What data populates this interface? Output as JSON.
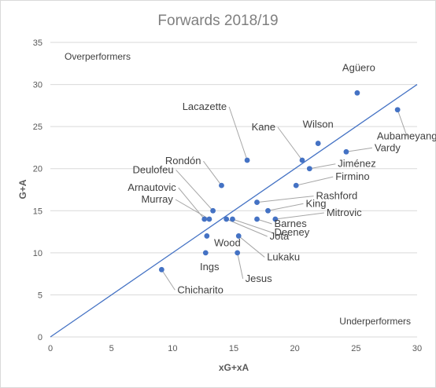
{
  "chart_data": {
    "type": "scatter",
    "title": "Forwards 2018/19",
    "xlabel": "xG+xA",
    "ylabel": "G+A",
    "xlim": [
      0,
      30
    ],
    "ylim": [
      0,
      35
    ],
    "x_ticks": [
      0,
      5,
      10,
      15,
      20,
      25,
      30
    ],
    "y_ticks": [
      0,
      5,
      10,
      15,
      20,
      25,
      30,
      35
    ],
    "grid": "horizontal",
    "legend": "none",
    "marker_color": "#4472c4",
    "reference_line": {
      "type": "y=x",
      "from": [
        0,
        0
      ],
      "to": [
        30,
        30
      ],
      "color": "#4472c4"
    },
    "annotations": [
      {
        "text": "Overperformers",
        "position": "top-left"
      },
      {
        "text": "Underperformers",
        "position": "bottom-right"
      }
    ],
    "points": [
      {
        "label": "Agüero",
        "x": 25.1,
        "y": 29
      },
      {
        "label": "Aubameyang",
        "x": 28.4,
        "y": 27
      },
      {
        "label": "Vardy",
        "x": 24.2,
        "y": 22
      },
      {
        "label": "Wilson",
        "x": 21.9,
        "y": 23
      },
      {
        "label": "Kane",
        "x": 20.6,
        "y": 21
      },
      {
        "label": "Jiménez",
        "x": 21.2,
        "y": 20
      },
      {
        "label": "Lacazette",
        "x": 16.1,
        "y": 21
      },
      {
        "label": "Firmino",
        "x": 20.1,
        "y": 18
      },
      {
        "label": "Rondón",
        "x": 14.0,
        "y": 18
      },
      {
        "label": "Rashford",
        "x": 16.9,
        "y": 16
      },
      {
        "label": "King",
        "x": 17.8,
        "y": 15
      },
      {
        "label": "Mitrovic",
        "x": 18.4,
        "y": 14
      },
      {
        "label": "Barnes",
        "x": 16.9,
        "y": 14
      },
      {
        "label": "Deulofeu",
        "x": 13.3,
        "y": 15
      },
      {
        "label": "Arnautovic",
        "x": 12.6,
        "y": 14
      },
      {
        "label": "Murray",
        "x": 13.0,
        "y": 14
      },
      {
        "label": "Deeney",
        "x": 14.9,
        "y": 14
      },
      {
        "label": "Jota",
        "x": 14.4,
        "y": 14
      },
      {
        "label": "Wood",
        "x": 12.8,
        "y": 12
      },
      {
        "label": "Lukaku",
        "x": 15.4,
        "y": 12
      },
      {
        "label": "Ings",
        "x": 12.7,
        "y": 10
      },
      {
        "label": "Jesus",
        "x": 15.3,
        "y": 10
      },
      {
        "label": "Chicharito",
        "x": 9.1,
        "y": 8
      }
    ]
  }
}
